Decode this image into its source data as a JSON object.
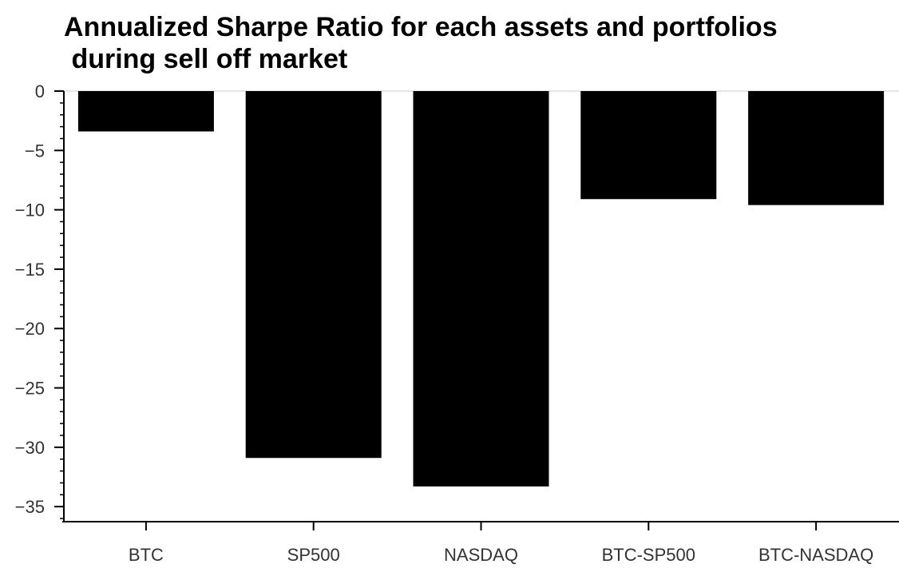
{
  "chart_data": {
    "type": "bar",
    "title": "Annualized Sharpe Ratio for each assets and portfolios\n during sell off market",
    "xlabel": "",
    "ylabel": "",
    "categories": [
      "BTC",
      "SP500",
      "NASDAQ",
      "BTC-SP500",
      "BTC-NASDAQ"
    ],
    "values": [
      -3.4,
      -30.9,
      -33.3,
      -9.1,
      -9.6
    ],
    "ylim": [
      -36.2,
      0
    ],
    "yticks": [
      0,
      -5,
      -10,
      -15,
      -20,
      -25,
      -30,
      -35
    ],
    "ytick_labels": [
      "0",
      "−5",
      "−10",
      "−15",
      "−20",
      "−25",
      "−30",
      "−35"
    ],
    "grid": false,
    "legend": "none",
    "bar_color": "#000000",
    "zero_line_color": "#e5e5e5"
  }
}
